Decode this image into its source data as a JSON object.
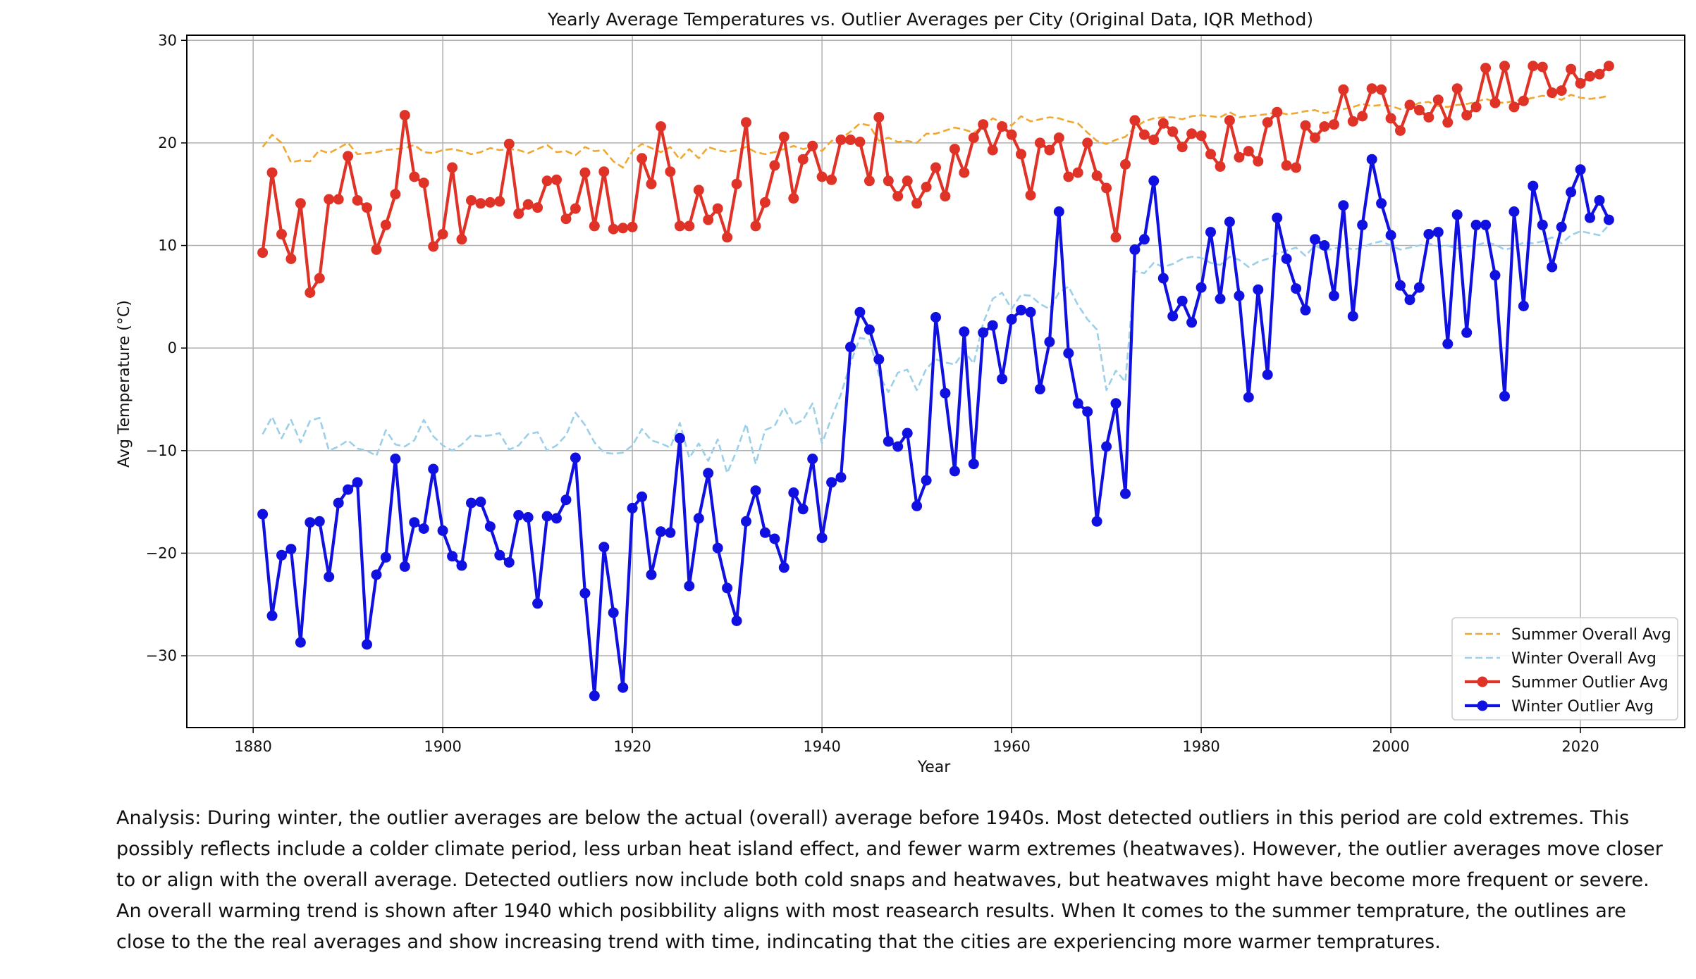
{
  "chart_data": {
    "type": "line",
    "title": "Yearly Average Temperatures vs. Outlier Averages per City (Original Data, IQR Method)",
    "xlabel": "Year",
    "ylabel": "Avg Temperature (°C)",
    "xlim": [
      1873,
      2031
    ],
    "ylim": [
      -37,
      30.5
    ],
    "xticks": [
      1880,
      1900,
      1920,
      1940,
      1960,
      1980,
      2000,
      2020
    ],
    "yticks": [
      30,
      20,
      10,
      0,
      -10,
      -20,
      -30
    ],
    "ytick_labels": [
      "30",
      "20",
      "10",
      "0",
      "−10",
      "−20",
      "−30"
    ],
    "grid": true,
    "legend_position": "lower-right",
    "x": [
      1881,
      1882,
      1883,
      1884,
      1885,
      1886,
      1887,
      1888,
      1889,
      1890,
      1891,
      1892,
      1893,
      1894,
      1895,
      1896,
      1897,
      1898,
      1899,
      1900,
      1901,
      1902,
      1903,
      1904,
      1905,
      1906,
      1907,
      1908,
      1909,
      1910,
      1911,
      1912,
      1913,
      1914,
      1915,
      1916,
      1917,
      1918,
      1919,
      1920,
      1921,
      1922,
      1923,
      1924,
      1925,
      1926,
      1927,
      1928,
      1929,
      1930,
      1931,
      1932,
      1933,
      1934,
      1935,
      1936,
      1937,
      1938,
      1939,
      1940,
      1941,
      1942,
      1943,
      1944,
      1945,
      1946,
      1947,
      1948,
      1949,
      1950,
      1951,
      1952,
      1953,
      1954,
      1955,
      1956,
      1957,
      1958,
      1959,
      1960,
      1961,
      1962,
      1963,
      1964,
      1965,
      1966,
      1967,
      1968,
      1969,
      1970,
      1971,
      1972,
      1973,
      1974,
      1975,
      1976,
      1977,
      1978,
      1979,
      1980,
      1981,
      1982,
      1983,
      1984,
      1985,
      1986,
      1987,
      1988,
      1989,
      1990,
      1991,
      1992,
      1993,
      1994,
      1995,
      1996,
      1997,
      1998,
      1999,
      2000,
      2001,
      2002,
      2003,
      2004,
      2005,
      2006,
      2007,
      2008,
      2009,
      2010,
      2011,
      2012,
      2013,
      2014,
      2015,
      2016,
      2017,
      2018,
      2019,
      2020,
      2021,
      2022,
      2023
    ],
    "series": [
      {
        "name": "Summer Overall Avg",
        "color": "#f0a830",
        "style": "dashed",
        "markers": false,
        "values": [
          19.6,
          20.8,
          20.0,
          18.1,
          18.3,
          18.2,
          19.3,
          19.0,
          19.5,
          20.0,
          18.9,
          19.0,
          19.1,
          19.3,
          19.4,
          19.5,
          19.8,
          19.1,
          19.0,
          19.3,
          19.4,
          19.2,
          18.9,
          19.1,
          19.5,
          19.3,
          19.4,
          19.3,
          19.0,
          19.4,
          19.8,
          19.1,
          19.2,
          18.8,
          19.6,
          19.2,
          19.3,
          18.2,
          17.6,
          19.2,
          19.9,
          19.5,
          19.1,
          19.6,
          18.4,
          19.4,
          18.5,
          19.6,
          19.3,
          19.1,
          19.3,
          19.6,
          19.1,
          18.9,
          19.1,
          19.4,
          19.7,
          19.4,
          19.6,
          19.2,
          20.2,
          20.4,
          21.1,
          21.9,
          21.7,
          20.2,
          20.5,
          20.1,
          20.2,
          20.0,
          20.9,
          20.9,
          21.2,
          21.5,
          21.3,
          21.0,
          21.6,
          22.4,
          22.0,
          21.7,
          22.6,
          22.1,
          22.3,
          22.5,
          22.4,
          22.1,
          21.9,
          21.0,
          20.2,
          19.9,
          20.3,
          20.6,
          21.5,
          22.1,
          22.4,
          22.5,
          22.5,
          22.3,
          22.6,
          22.7,
          22.6,
          22.5,
          23.0,
          22.5,
          22.6,
          22.7,
          22.8,
          23.0,
          22.8,
          22.9,
          23.1,
          23.2,
          22.9,
          23.1,
          23.3,
          23.5,
          23.8,
          23.6,
          23.7,
          23.6,
          23.3,
          23.5,
          23.9,
          24.0,
          23.6,
          23.5,
          23.7,
          23.8,
          24.0,
          24.3,
          24.0,
          23.9,
          24.1,
          24.2,
          24.4,
          24.6,
          24.5,
          24.2,
          24.7,
          24.4,
          24.3,
          24.4,
          24.6
        ]
      },
      {
        "name": "Winter Overall Avg",
        "color": "#9ccfe8",
        "style": "dashed",
        "markers": false,
        "values": [
          -8.4,
          -6.7,
          -8.8,
          -7.0,
          -9.2,
          -7.1,
          -6.8,
          -10.0,
          -9.6,
          -9.0,
          -9.8,
          -10.0,
          -10.5,
          -8.0,
          -9.4,
          -9.6,
          -9.0,
          -7.0,
          -8.6,
          -9.5,
          -10.0,
          -9.4,
          -8.5,
          -8.6,
          -8.5,
          -8.3,
          -9.9,
          -9.5,
          -8.4,
          -8.2,
          -10.0,
          -9.5,
          -8.5,
          -6.3,
          -7.5,
          -9.2,
          -10.2,
          -10.3,
          -10.2,
          -9.5,
          -7.9,
          -9.0,
          -9.3,
          -9.7,
          -7.3,
          -10.7,
          -9.3,
          -11.0,
          -8.9,
          -12.2,
          -10.0,
          -7.4,
          -11.3,
          -8.0,
          -7.6,
          -5.8,
          -7.5,
          -7.0,
          -5.4,
          -9.3,
          -6.8,
          -4.5,
          -1.5,
          1.0,
          0.8,
          -2.6,
          -4.3,
          -2.4,
          -2.1,
          -4.1,
          -2.0,
          -1.1,
          -1.4,
          -1.6,
          -0.3,
          -1.5,
          2.4,
          4.8,
          5.4,
          3.8,
          5.2,
          5.1,
          4.3,
          3.8,
          5.4,
          6.0,
          4.2,
          2.8,
          1.8,
          -4.1,
          -2.2,
          -3.3,
          7.5,
          7.3,
          8.3,
          7.9,
          8.2,
          8.7,
          8.9,
          8.8,
          8.3,
          8.1,
          8.9,
          8.6,
          7.9,
          8.4,
          8.7,
          9.2,
          9.5,
          9.8,
          9.0,
          10.0,
          9.5,
          9.7,
          9.9,
          9.6,
          9.8,
          10.2,
          10.4,
          10.0,
          9.6,
          9.8,
          10.0,
          10.2,
          9.9,
          10.0,
          9.7,
          9.9,
          10.0,
          10.3,
          10.1,
          9.6,
          9.8,
          10.3,
          10.2,
          10.4,
          10.8,
          10.2,
          11.0,
          11.4,
          11.2,
          11.0,
          12.0
        ]
      },
      {
        "name": "Summer Outlier Avg",
        "color": "#e03328",
        "style": "solid",
        "markers": true,
        "values": [
          9.3,
          17.1,
          11.1,
          8.7,
          14.1,
          5.4,
          6.8,
          14.5,
          14.5,
          18.7,
          14.4,
          13.7,
          9.6,
          12.0,
          15.0,
          22.7,
          16.7,
          16.1,
          9.9,
          11.1,
          17.6,
          10.6,
          14.4,
          14.1,
          14.2,
          14.3,
          19.9,
          13.1,
          14.0,
          13.7,
          16.3,
          16.4,
          12.6,
          13.6,
          17.1,
          11.9,
          17.2,
          11.6,
          11.7,
          11.8,
          18.5,
          16.0,
          21.6,
          17.2,
          11.9,
          11.9,
          15.4,
          12.5,
          13.6,
          10.8,
          16.0,
          22.0,
          11.9,
          14.2,
          17.8,
          20.6,
          14.6,
          18.4,
          19.7,
          16.7,
          16.4,
          20.3,
          20.3,
          20.1,
          16.3,
          22.5,
          16.3,
          14.8,
          16.3,
          14.1,
          15.7,
          17.6,
          14.8,
          19.4,
          17.1,
          20.5,
          21.8,
          19.3,
          21.6,
          20.8,
          18.9,
          14.9,
          20.0,
          19.3,
          20.5,
          16.7,
          17.1,
          20.0,
          16.8,
          15.6,
          10.8,
          17.9,
          22.2,
          20.8,
          20.3,
          21.9,
          21.1,
          19.6,
          20.9,
          20.7,
          18.9,
          17.7,
          22.2,
          18.6,
          19.2,
          18.2,
          22.0,
          23.0,
          17.8,
          17.6,
          21.7,
          20.5,
          21.6,
          21.8,
          25.2,
          22.1,
          22.6,
          25.3,
          25.2,
          22.4,
          21.2,
          23.7,
          23.2,
          22.5,
          24.2,
          22.0,
          25.3,
          22.7,
          23.5,
          27.3,
          23.9,
          27.5,
          23.5,
          24.1,
          27.5,
          27.4,
          24.9,
          25.1,
          27.2,
          25.8,
          26.5,
          26.7,
          27.5
        ]
      },
      {
        "name": "Winter Outlier Avg",
        "color": "#1010e0",
        "style": "solid",
        "markers": true,
        "values": [
          -16.2,
          -26.1,
          -20.2,
          -19.6,
          -28.7,
          -17.0,
          -16.9,
          -22.3,
          -15.1,
          -13.8,
          -13.1,
          -28.9,
          -22.1,
          -20.4,
          -10.8,
          -21.3,
          -17.0,
          -17.6,
          -11.8,
          -17.8,
          -20.3,
          -21.2,
          -15.1,
          -15.0,
          -17.4,
          -20.2,
          -20.9,
          -16.3,
          -16.5,
          -24.9,
          -16.4,
          -16.6,
          -14.8,
          -10.7,
          -23.9,
          -33.9,
          -19.4,
          -25.8,
          -33.1,
          -15.6,
          -14.5,
          -22.1,
          -17.9,
          -18.0,
          -8.8,
          -23.2,
          -16.6,
          -12.2,
          -19.5,
          -23.4,
          -26.6,
          -16.9,
          -13.9,
          -18.0,
          -18.6,
          -21.4,
          -14.1,
          -15.7,
          -10.8,
          -18.5,
          -13.1,
          -12.6,
          0.1,
          3.5,
          1.8,
          -1.1,
          -9.1,
          -9.6,
          -8.3,
          -15.4,
          -12.9,
          3.0,
          -4.4,
          -12.0,
          1.6,
          -11.3,
          1.5,
          2.2,
          -3.0,
          2.8,
          3.7,
          3.5,
          -4.0,
          0.6,
          13.3,
          -0.5,
          -5.4,
          -6.2,
          -16.9,
          -9.6,
          -5.4,
          -14.2,
          9.6,
          10.6,
          16.3,
          6.8,
          3.1,
          4.6,
          2.5,
          5.9,
          11.3,
          4.8,
          12.3,
          5.1,
          -4.8,
          5.7,
          -2.6,
          12.7,
          8.7,
          5.8,
          3.7,
          10.6,
          10.0,
          5.1,
          13.9,
          3.1,
          12.0,
          18.4,
          14.1,
          11.0,
          6.1,
          4.7,
          5.9,
          11.1,
          11.3,
          0.4,
          13.0,
          1.5,
          12.0,
          12.0,
          7.1,
          -4.7,
          13.3,
          4.1,
          15.8,
          12.0,
          7.9,
          11.8,
          15.2,
          17.4,
          12.7,
          14.4,
          12.5
        ]
      }
    ]
  },
  "analysis_text": "Analysis: During winter, the outlier averages are below the actual (overall) average before 1940s. Most detected outliers in this period are cold extremes. This possibly reflects include a colder climate period, less urban heat island effect, and fewer warm extremes (heatwaves). However, the outlier averages move closer to or align with the overall average. Detected outliers now include both cold snaps and heatwaves, but heatwaves might have become more frequent or severe. An overall warming trend is shown after 1940 which posibbility aligns with most reasearch results. When It comes to the summer temprature, the outlines are close to the the real averages and show increasing trend with time, indincating that the cities are experiencing more warmer tempratures."
}
